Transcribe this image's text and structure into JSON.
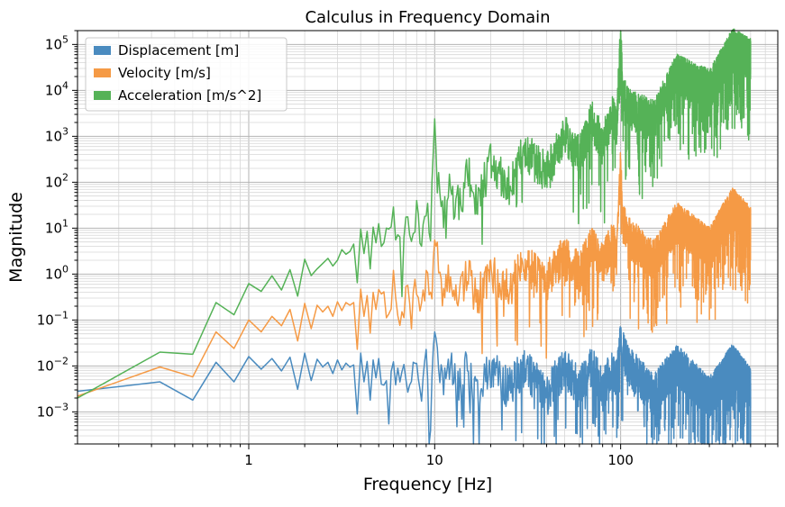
{
  "chart_data": {
    "type": "line",
    "title": "Calculus in Frequency Domain",
    "xlabel": "Frequency [Hz]",
    "ylabel": "Magnitude",
    "xscale": "log",
    "yscale": "log",
    "xlim": [
      0.12,
      700
    ],
    "ylim": [
      0.0002,
      200000
    ],
    "grid": "both major and minor",
    "legend_position": "top-left",
    "x_tick_labels": [
      "1",
      "10",
      "100"
    ],
    "y_tick_labels": [
      "10^-3",
      "10^-2",
      "10^-1",
      "10^0",
      "10^1",
      "10^2",
      "10^3",
      "10^4",
      "10^5"
    ],
    "peaks": [
      10,
      100
    ],
    "spectrum_end": 500,
    "series": [
      {
        "name": "Displacement [m]",
        "color": "#4a8bbf",
        "points": [
          [
            0.12,
            0.0028
          ],
          [
            0.333,
            0.0045
          ],
          [
            0.5,
            0.0018
          ],
          [
            0.667,
            0.012
          ],
          [
            0.833,
            0.0045
          ],
          [
            1.0,
            0.016
          ],
          [
            1.167,
            0.0085
          ],
          [
            1.333,
            0.0145
          ],
          [
            1.5,
            0.0078
          ],
          [
            1.667,
            0.0155
          ],
          [
            1.833,
            0.0031
          ],
          [
            2.0,
            0.019
          ],
          [
            2.167,
            0.0048
          ],
          [
            2.333,
            0.014
          ],
          [
            2.5,
            0.0095
          ],
          [
            2.667,
            0.012
          ],
          [
            2.833,
            0.0068
          ],
          [
            3.0,
            0.0135
          ],
          [
            3.167,
            0.0082
          ],
          [
            3.333,
            0.0115
          ],
          [
            3.5,
            0.0095
          ],
          [
            3.667,
            0.0105
          ],
          [
            3.833,
            0.0009
          ],
          [
            4.0,
            0.019
          ],
          [
            4.167,
            0.0045
          ],
          [
            4.333,
            0.0125
          ],
          [
            4.5,
            0.0018
          ],
          [
            4.667,
            0.0135
          ],
          [
            4.833,
            0.0055
          ],
          [
            5.0,
            0.0145
          ],
          [
            5.5,
            0.004
          ],
          [
            6.0,
            0.0165
          ],
          [
            6.5,
            0.0032
          ],
          [
            7.0,
            0.014
          ],
          [
            7.5,
            0.0048
          ],
          [
            8.0,
            0.015
          ],
          [
            8.5,
            0.0036
          ],
          [
            9.0,
            0.017
          ],
          [
            9.5,
            0.0055
          ],
          [
            10.0,
            0.055
          ],
          [
            10.2,
            0.038
          ],
          [
            10.5,
            0.014
          ],
          [
            11.0,
            0.0065
          ],
          [
            12.0,
            0.0155
          ],
          [
            13.0,
            0.0045
          ],
          [
            15.0,
            0.0135
          ],
          [
            17.0,
            0.0038
          ],
          [
            20.0,
            0.0125
          ],
          [
            25.0,
            0.0042
          ],
          [
            30.0,
            0.013
          ],
          [
            40.0,
            0.0036
          ],
          [
            50.0,
            0.0125
          ],
          [
            60.0,
            0.0045
          ],
          [
            70.0,
            0.0135
          ],
          [
            80.0,
            0.0042
          ],
          [
            90.0,
            0.0125
          ],
          [
            95.0,
            0.0065
          ],
          [
            100.0,
            0.05
          ],
          [
            103.0,
            0.028
          ],
          [
            110.0,
            0.014
          ],
          [
            150.0,
            0.0032
          ],
          [
            200.0,
            0.0145
          ],
          [
            300.0,
            0.0028
          ],
          [
            400.0,
            0.0148
          ],
          [
            500.0,
            0.0045
          ]
        ]
      },
      {
        "name": "Velocity [m/s]",
        "color": "#f59a45",
        "points": [
          [
            0.12,
            0.0022
          ],
          [
            0.333,
            0.0095
          ],
          [
            0.5,
            0.0058
          ],
          [
            0.667,
            0.055
          ],
          [
            0.833,
            0.024
          ],
          [
            1.0,
            0.1
          ],
          [
            1.167,
            0.055
          ],
          [
            1.333,
            0.12
          ],
          [
            1.5,
            0.075
          ],
          [
            1.667,
            0.17
          ],
          [
            1.833,
            0.035
          ],
          [
            2.0,
            0.23
          ],
          [
            2.167,
            0.065
          ],
          [
            2.333,
            0.21
          ],
          [
            2.5,
            0.15
          ],
          [
            2.667,
            0.2
          ],
          [
            2.833,
            0.12
          ],
          [
            3.0,
            0.25
          ],
          [
            3.167,
            0.16
          ],
          [
            3.333,
            0.24
          ],
          [
            3.5,
            0.21
          ],
          [
            3.667,
            0.24
          ],
          [
            3.833,
            0.023
          ],
          [
            4.0,
            0.47
          ],
          [
            4.167,
            0.12
          ],
          [
            4.333,
            0.34
          ],
          [
            4.5,
            0.052
          ],
          [
            4.667,
            0.4
          ],
          [
            4.833,
            0.17
          ],
          [
            5.0,
            0.46
          ],
          [
            5.5,
            0.14
          ],
          [
            6.0,
            0.63
          ],
          [
            6.5,
            0.13
          ],
          [
            7.0,
            0.62
          ],
          [
            7.5,
            0.23
          ],
          [
            8.0,
            0.76
          ],
          [
            8.5,
            0.19
          ],
          [
            9.0,
            0.95
          ],
          [
            9.5,
            0.33
          ],
          [
            10.0,
            5.5
          ],
          [
            10.2,
            3.8
          ],
          [
            10.5,
            1.5
          ],
          [
            11.0,
            0.45
          ],
          [
            12.0,
            1.2
          ],
          [
            13.0,
            0.37
          ],
          [
            15.0,
            1.3
          ],
          [
            17.0,
            0.42
          ],
          [
            20.0,
            1.5
          ],
          [
            25.0,
            0.6
          ],
          [
            30.0,
            2.3
          ],
          [
            40.0,
            0.9
          ],
          [
            50.0,
            3.8
          ],
          [
            60.0,
            1.4
          ],
          [
            70.0,
            5.8
          ],
          [
            80.0,
            2.1
          ],
          [
            90.0,
            7.5
          ],
          [
            95.0,
            4.5
          ],
          [
            100.0,
            320
          ],
          [
            103.0,
            18
          ],
          [
            110.0,
            8.5
          ],
          [
            150.0,
            2.8
          ],
          [
            200.0,
            18
          ],
          [
            300.0,
            5.2
          ],
          [
            400.0,
            38
          ],
          [
            500.0,
            14
          ]
        ]
      },
      {
        "name": "Acceleration [m/s^2]",
        "color": "#55b257",
        "points": [
          [
            0.12,
            0.002
          ],
          [
            0.333,
            0.02
          ],
          [
            0.5,
            0.018
          ],
          [
            0.667,
            0.24
          ],
          [
            0.833,
            0.13
          ],
          [
            1.0,
            0.62
          ],
          [
            1.167,
            0.42
          ],
          [
            1.333,
            0.92
          ],
          [
            1.5,
            0.45
          ],
          [
            1.667,
            1.25
          ],
          [
            1.833,
            0.33
          ],
          [
            2.0,
            2.1
          ],
          [
            2.167,
            0.93
          ],
          [
            2.333,
            1.3
          ],
          [
            2.5,
            1.7
          ],
          [
            2.667,
            2.2
          ],
          [
            2.833,
            1.5
          ],
          [
            3.0,
            2.0
          ],
          [
            3.167,
            3.4
          ],
          [
            3.333,
            2.7
          ],
          [
            3.5,
            3.1
          ],
          [
            3.667,
            4.5
          ],
          [
            3.833,
            0.65
          ],
          [
            4.0,
            9.5
          ],
          [
            4.167,
            2.8
          ],
          [
            4.333,
            8.5
          ],
          [
            4.5,
            1.3
          ],
          [
            4.667,
            10.5
          ],
          [
            4.833,
            4.8
          ],
          [
            5.0,
            12.5
          ],
          [
            5.5,
            5.5
          ],
          [
            6.0,
            21
          ],
          [
            6.5,
            4.8
          ],
          [
            7.0,
            28
          ],
          [
            7.5,
            9.5
          ],
          [
            8.0,
            42
          ],
          [
            8.5,
            11
          ],
          [
            9.0,
            52
          ],
          [
            9.5,
            18
          ],
          [
            10.0,
            2400
          ],
          [
            10.2,
            350
          ],
          [
            10.5,
            95
          ],
          [
            11.0,
            24
          ],
          [
            12.0,
            130
          ],
          [
            13.0,
            32
          ],
          [
            15.0,
            210
          ],
          [
            17.0,
            55
          ],
          [
            20.0,
            330
          ],
          [
            25.0,
            110
          ],
          [
            30.0,
            650
          ],
          [
            40.0,
            220
          ],
          [
            50.0,
            1600
          ],
          [
            60.0,
            480
          ],
          [
            70.0,
            3200
          ],
          [
            80.0,
            850
          ],
          [
            90.0,
            4500
          ],
          [
            95.0,
            1800
          ],
          [
            100.0,
            200000
          ],
          [
            103.0,
            12000
          ],
          [
            110.0,
            5500
          ],
          [
            150.0,
            3000
          ],
          [
            200.0,
            30000
          ],
          [
            300.0,
            14000
          ],
          [
            400.0,
            110000
          ],
          [
            500.0,
            65000
          ]
        ]
      }
    ]
  }
}
